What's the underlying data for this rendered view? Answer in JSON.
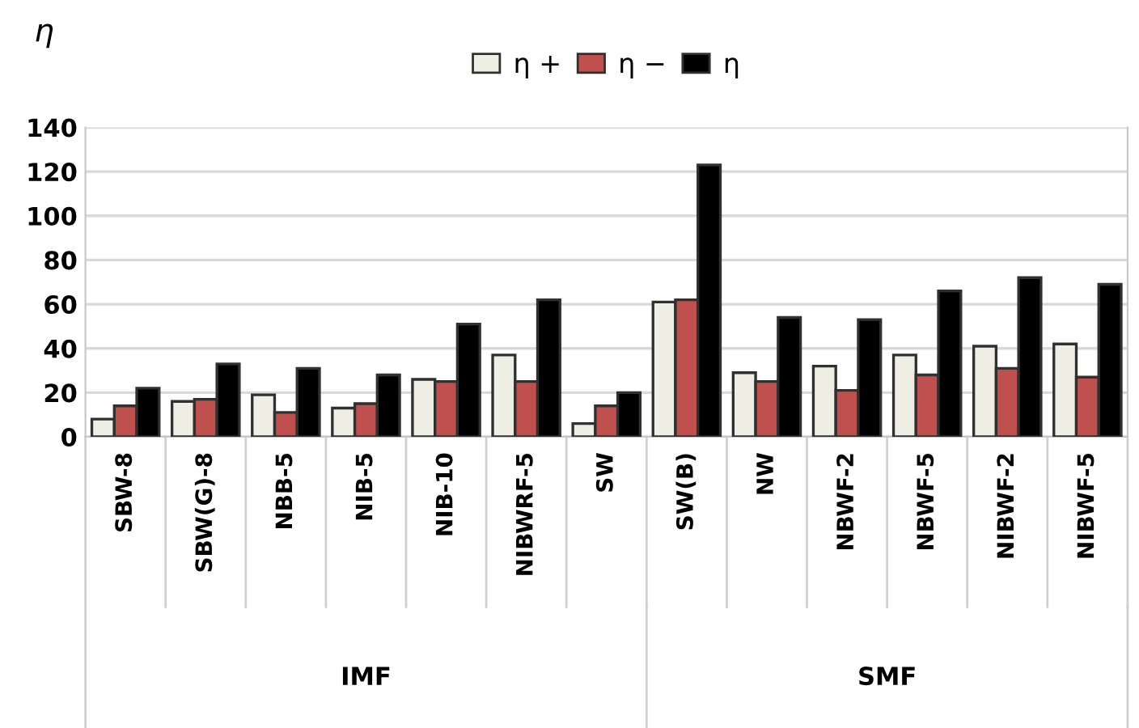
{
  "chart_data": {
    "type": "bar",
    "ylabel": "η",
    "categories": [
      "SBW-8",
      "SBW(G)-8",
      "NBB-5",
      "NIB-5",
      "NIB-10",
      "NIBWRF-5",
      "SW",
      "SW(B)",
      "NW",
      "NBWF-2",
      "NBWF-5",
      "NIBWF-2",
      "NIBWF-5"
    ],
    "series": [
      {
        "name": "η +",
        "color": "#eeeee4",
        "values": [
          8,
          16,
          19,
          13,
          26,
          37,
          6,
          61,
          29,
          32,
          37,
          41,
          42
        ]
      },
      {
        "name": "η −",
        "color": "#c0504d",
        "values": [
          14,
          17,
          11,
          15,
          25,
          25,
          14,
          62,
          25,
          21,
          28,
          31,
          27
        ]
      },
      {
        "name": "η",
        "color": "#000000",
        "values": [
          22,
          33,
          31,
          28,
          51,
          62,
          20,
          123,
          54,
          53,
          66,
          72,
          69
        ]
      }
    ],
    "ylim": [
      0,
      140
    ],
    "yticks": [
      0,
      20,
      40,
      60,
      80,
      100,
      120,
      140
    ],
    "grid": "y",
    "legend": "top",
    "annotations": [
      "IMF",
      "SMF"
    ]
  }
}
